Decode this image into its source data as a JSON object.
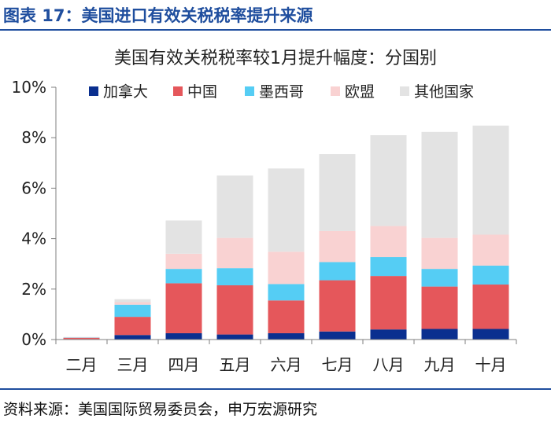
{
  "figure": {
    "title": "图表 17：美国进口有效关税税率提升来源",
    "source": "资料来源：美国国际贸易委员会，申万宏源研究"
  },
  "chart_data": {
    "type": "bar",
    "stacked": true,
    "title": "美国有效关税税率较1月提升幅度：分国别",
    "categories": [
      "二月",
      "三月",
      "四月",
      "五月",
      "六月",
      "七月",
      "八月",
      "九月",
      "十月"
    ],
    "y_tick_labels": [
      "0%",
      "2%",
      "4%",
      "6%",
      "8%",
      "10%"
    ],
    "y_ticks": [
      0,
      2,
      4,
      6,
      8,
      10
    ],
    "ylim": [
      0,
      10
    ],
    "legend_position": "top",
    "grid": false,
    "series": [
      {
        "name": "加拿大",
        "color": "#0a2f8f",
        "values": [
          0.02,
          0.18,
          0.25,
          0.2,
          0.25,
          0.32,
          0.4,
          0.42,
          0.42
        ]
      },
      {
        "name": "中国",
        "color": "#e5575b",
        "values": [
          0.05,
          0.72,
          1.98,
          1.95,
          1.3,
          2.03,
          2.12,
          1.68,
          1.76
        ]
      },
      {
        "name": "墨西哥",
        "color": "#55cdf4",
        "values": [
          0.01,
          0.48,
          0.57,
          0.68,
          0.65,
          0.72,
          0.75,
          0.7,
          0.75
        ]
      },
      {
        "name": "欧盟",
        "color": "#f9d2d2",
        "values": [
          0.01,
          0.1,
          0.6,
          1.2,
          1.28,
          1.23,
          1.23,
          1.23,
          1.23
        ]
      },
      {
        "name": "其他国家",
        "color": "#e3e3e3",
        "values": [
          0.01,
          0.12,
          1.32,
          2.47,
          3.3,
          3.05,
          3.6,
          4.2,
          4.32
        ]
      }
    ]
  }
}
